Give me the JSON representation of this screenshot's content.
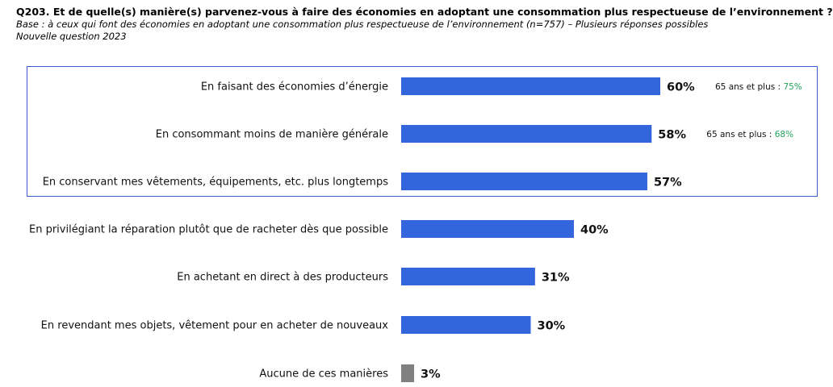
{
  "header": {
    "title": "Q203. Et de quelle(s) manière(s) parvenez-vous à faire des économies en adoptant une consommation plus respectueuse de l’environnement ?",
    "base": "Base : à ceux qui font des économies en adoptant une consommation plus respectueuse de l’environnement (n=757) – Plusieurs réponses possibles",
    "note": "Nouvelle question 2023"
  },
  "chart_data": {
    "type": "bar",
    "orientation": "horizontal",
    "title": "Q203. Et de quelle(s) manière(s) parvenez-vous à faire des économies en adoptant une consommation plus respectueuse de l’environnement ?",
    "xlabel": "",
    "ylabel": "",
    "xlim": [
      0,
      100
    ],
    "unit": "%",
    "grid": false,
    "categories": [
      "En faisant des économies d’énergie",
      "En consommant moins de manière générale",
      "En conservant mes vêtements, équipements, etc. plus longtemps",
      "En privilégiant la réparation plutôt que de racheter dès que possible",
      "En achetant en direct à des producteurs",
      "En revendant mes objets, vêtement pour en acheter de nouveaux",
      "Aucune de ces manières"
    ],
    "values": [
      60,
      58,
      57,
      40,
      31,
      30,
      3
    ],
    "value_labels": [
      "60%",
      "58%",
      "57%",
      "40%",
      "31%",
      "30%",
      "3%"
    ],
    "colors": [
      "#3366dd",
      "#3366dd",
      "#3366dd",
      "#3366dd",
      "#3366dd",
      "#3366dd",
      "#808080"
    ],
    "highlighted_rows": 3,
    "highlight_box_color": "#3b5bd6",
    "annotations": [
      {
        "row": 0,
        "label": "65 ans et plus : ",
        "value": "75%"
      },
      {
        "row": 1,
        "label": "65 ans et plus : ",
        "value": "68%"
      }
    ],
    "annotation_value_color": "#22a35a"
  }
}
